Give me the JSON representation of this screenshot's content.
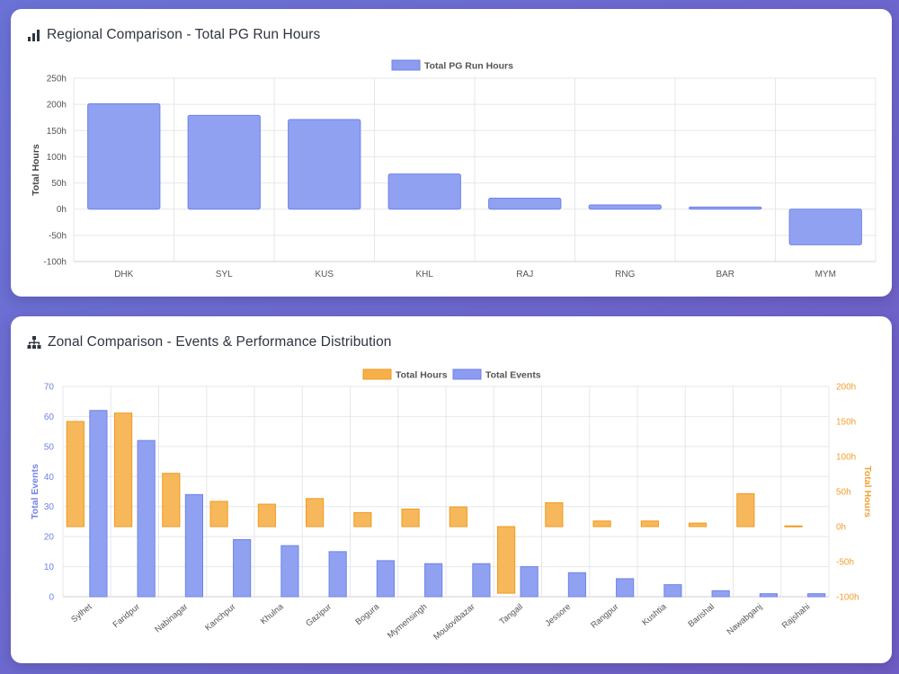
{
  "regional": {
    "title": "Regional Comparison - Total PG Run Hours",
    "icon": "bar-chart-icon",
    "chart_data": {
      "type": "bar",
      "categories": [
        "DHK",
        "SYL",
        "KUS",
        "KHL",
        "RAJ",
        "RNG",
        "BAR",
        "MYM"
      ],
      "series": [
        {
          "name": "Total PG Run Hours",
          "values": [
            201,
            179,
            171,
            67,
            21,
            8,
            4,
            -68
          ],
          "color": "#8b9cf1"
        }
      ],
      "ylabel": "Total Hours",
      "ylim": [
        -100,
        250
      ],
      "yticks": [
        "250h",
        "200h",
        "150h",
        "100h",
        "50h",
        "0h",
        "-50h",
        "-100h"
      ],
      "legend": "top-center",
      "grid": true
    }
  },
  "zonal": {
    "title": "Zonal Comparison - Events & Performance Distribution",
    "icon": "sitemap-icon",
    "chart_data": {
      "type": "bar",
      "categories": [
        "Sylhet",
        "Faridpur",
        "Nabinagar",
        "Kanchpur",
        "Khulna",
        "Gazipur",
        "Bogura",
        "Mymensingh",
        "Moulovibazar",
        "Tangail",
        "Jessore",
        "Rangpur",
        "Kushtia",
        "Barishal",
        "Nawabganj",
        "Rajshahi"
      ],
      "series": [
        {
          "name": "Total Hours",
          "axis": "right",
          "values": [
            150,
            162,
            76,
            36,
            32,
            40,
            20,
            25,
            28,
            -95,
            34,
            8,
            8,
            5,
            47,
            1
          ],
          "color": "#f6b04a"
        },
        {
          "name": "Total Events",
          "axis": "left",
          "values": [
            62,
            52,
            34,
            19,
            17,
            15,
            12,
            11,
            11,
            10,
            8,
            6,
            4,
            2,
            1,
            1
          ],
          "color": "#8b9cf1"
        }
      ],
      "ylabel_left": "Total Events",
      "ylabel_right": "Total Hours",
      "ylim_left": [
        0,
        70
      ],
      "ylim_right": [
        -100,
        200
      ],
      "yticks_left": [
        "70",
        "60",
        "50",
        "40",
        "30",
        "20",
        "10",
        "0"
      ],
      "yticks_right": [
        "200h",
        "150h",
        "100h",
        "50h",
        "0h",
        "-50h",
        "-100h"
      ],
      "legend": "top-center",
      "grid": true
    }
  }
}
